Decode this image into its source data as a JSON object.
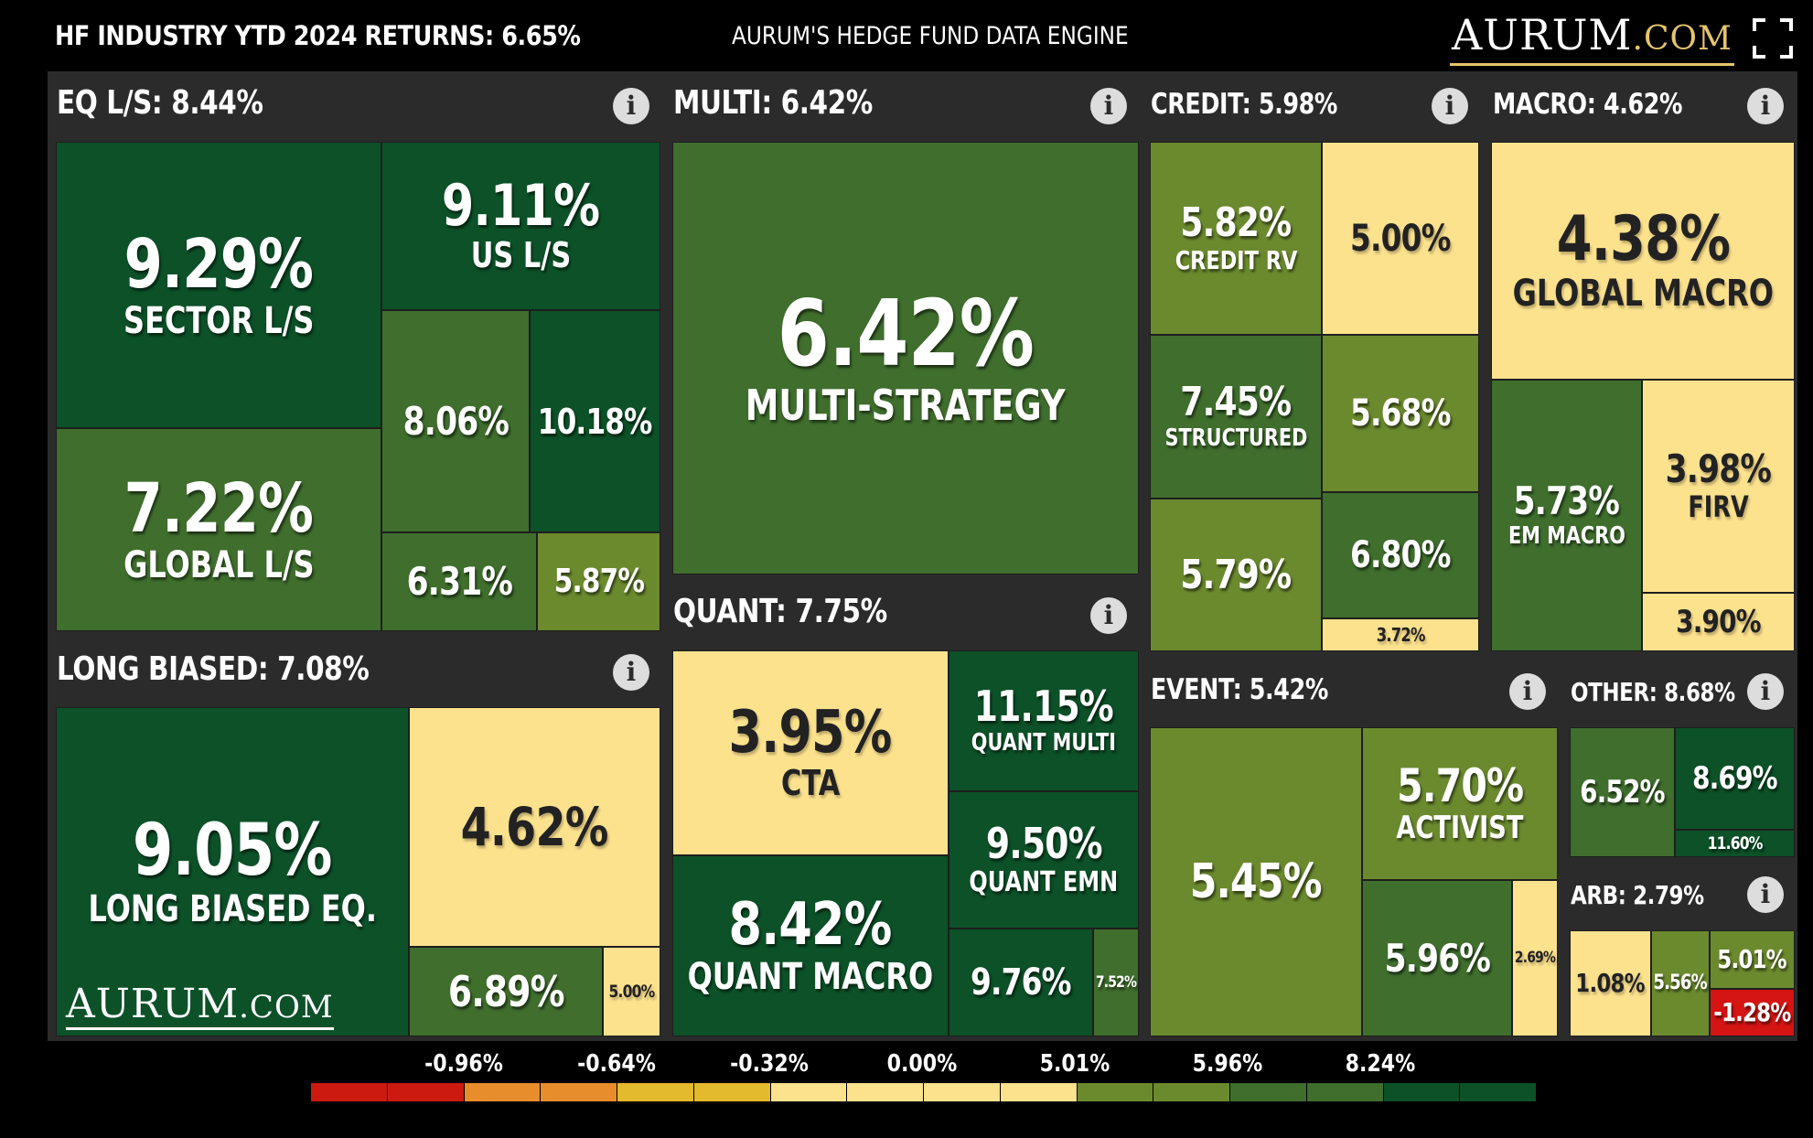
{
  "header": {
    "industry_returns": "HF INDUSTRY YTD 2024 RETURNS: 6.65%",
    "engine_title": "AURUM'S HEDGE FUND DATA ENGINE",
    "logo_big": "AURUM",
    "logo_small": ".COM",
    "fullscreen_icon": "fullscreen-icon"
  },
  "bottom_logo": {
    "big": "AURUM",
    "small": ".COM"
  },
  "info_icon": "i",
  "colors": {
    "dark_green": "#0c5128",
    "mid_green": "#2e6c2b",
    "green": "#3f6e2d",
    "olive": "#6b8a2e",
    "light_yellow": "#fde28e",
    "red": "#d51414",
    "panel": "#2b2b2b"
  },
  "chart_data": {
    "type": "treemap",
    "title": "HF INDUSTRY YTD 2024 RETURNS: 6.65%",
    "sections": [
      {
        "id": "eqls",
        "label": "EQ L/S: 8.44%",
        "tiles": [
          {
            "value": "9.29%",
            "label": "SECTOR L/S"
          },
          {
            "value": "9.11%",
            "label": "US L/S"
          },
          {
            "value": "7.22%",
            "label": "GLOBAL L/S"
          },
          {
            "value": "8.06%",
            "label": ""
          },
          {
            "value": "10.18%",
            "label": ""
          },
          {
            "value": "6.31%",
            "label": ""
          },
          {
            "value": "5.87%",
            "label": ""
          }
        ]
      },
      {
        "id": "multi",
        "label": "MULTI: 6.42%",
        "tiles": [
          {
            "value": "6.42%",
            "label": "MULTI-STRATEGY"
          }
        ]
      },
      {
        "id": "credit",
        "label": "CREDIT: 5.98%",
        "tiles": [
          {
            "value": "5.82%",
            "label": "CREDIT RV"
          },
          {
            "value": "5.00%",
            "label": ""
          },
          {
            "value": "7.45%",
            "label": "STRUCTURED"
          },
          {
            "value": "5.68%",
            "label": ""
          },
          {
            "value": "5.79%",
            "label": ""
          },
          {
            "value": "6.80%",
            "label": ""
          },
          {
            "value": "3.72%",
            "label": ""
          }
        ]
      },
      {
        "id": "macro",
        "label": "MACRO: 4.62%",
        "tiles": [
          {
            "value": "4.38%",
            "label": "GLOBAL MACRO"
          },
          {
            "value": "5.73%",
            "label": "EM MACRO"
          },
          {
            "value": "3.98%",
            "label": "FIRV"
          },
          {
            "value": "3.90%",
            "label": ""
          }
        ]
      },
      {
        "id": "longb",
        "label": "LONG BIASED: 7.08%",
        "tiles": [
          {
            "value": "9.05%",
            "label": "LONG BIASED EQ."
          },
          {
            "value": "4.62%",
            "label": ""
          },
          {
            "value": "6.89%",
            "label": ""
          },
          {
            "value": "5.00%",
            "label": ""
          }
        ]
      },
      {
        "id": "quant",
        "label": "QUANT: 7.75%",
        "tiles": [
          {
            "value": "3.95%",
            "label": "CTA"
          },
          {
            "value": "11.15%",
            "label": "QUANT MULTI"
          },
          {
            "value": "9.50%",
            "label": "QUANT EMN"
          },
          {
            "value": "8.42%",
            "label": "QUANT MACRO"
          },
          {
            "value": "9.76%",
            "label": ""
          },
          {
            "value": "7.52%",
            "label": ""
          }
        ]
      },
      {
        "id": "event",
        "label": "EVENT: 5.42%",
        "tiles": [
          {
            "value": "5.45%",
            "label": ""
          },
          {
            "value": "5.70%",
            "label": "ACTIVIST"
          },
          {
            "value": "5.96%",
            "label": ""
          },
          {
            "value": "2.69%",
            "label": ""
          }
        ]
      },
      {
        "id": "other",
        "label": "OTHER: 8.68%",
        "tiles": [
          {
            "value": "6.52%",
            "label": ""
          },
          {
            "value": "8.69%",
            "label": ""
          },
          {
            "value": "11.60%",
            "label": ""
          }
        ]
      },
      {
        "id": "arb",
        "label": "ARB: 2.79%",
        "tiles": [
          {
            "value": "1.08%",
            "label": ""
          },
          {
            "value": "5.56%",
            "label": ""
          },
          {
            "value": "5.01%",
            "label": ""
          },
          {
            "value": "-1.28%",
            "label": ""
          }
        ]
      }
    ],
    "legend": {
      "labels": [
        "-0.96%",
        "-0.64%",
        "-0.32%",
        "0.00%",
        "5.01%",
        "5.96%",
        "8.24%"
      ],
      "colors": [
        "#cc1a10",
        "#cc1a10",
        "#e88d2c",
        "#e88d2c",
        "#e3b92e",
        "#e3b92e",
        "#fde28e",
        "#fde28e",
        "#fde28e",
        "#fde28e",
        "#6b8a2e",
        "#6b8a2e",
        "#3f6e2d",
        "#3f6e2d",
        "#0c5128",
        "#0c5128"
      ]
    }
  }
}
